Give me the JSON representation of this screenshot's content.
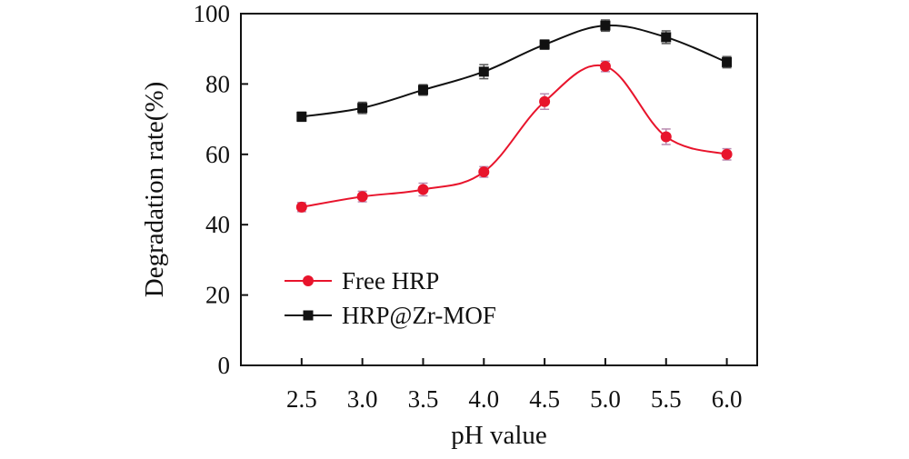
{
  "chart_data": {
    "type": "line",
    "title": "",
    "xlabel": "pH value",
    "ylabel": "Degradation rate(%)",
    "x": [
      2.5,
      3.0,
      3.5,
      4.0,
      4.5,
      5.0,
      5.5,
      6.0
    ],
    "x_tick_labels": [
      "2.5",
      "3.0",
      "3.5",
      "4.0",
      "4.5",
      "5.0",
      "5.5",
      "6.0"
    ],
    "xlim": [
      2.0,
      6.25
    ],
    "ylim": [
      0,
      100
    ],
    "y_ticks": [
      0,
      20,
      40,
      60,
      80,
      100
    ],
    "y_tick_labels": [
      "0",
      "20",
      "40",
      "60",
      "80",
      "100"
    ],
    "grid": false,
    "legend_position": "bottom-left",
    "series": [
      {
        "name": "Free HRP",
        "color": "#e8142c",
        "marker": "circle",
        "values": [
          45,
          48,
          50,
          55,
          75,
          85,
          65,
          60
        ],
        "errors": [
          1.3,
          1.5,
          1.8,
          1.5,
          2.2,
          1.5,
          2.2,
          1.6
        ]
      },
      {
        "name": "HRP@Zr-MOF",
        "color": "#111111",
        "marker": "square",
        "values": [
          70.7,
          73.2,
          78.3,
          83.5,
          91.2,
          96.6,
          93.3,
          86.2
        ],
        "errors": [
          1.3,
          1.6,
          1.5,
          2.0,
          1.3,
          1.6,
          1.8,
          1.6
        ]
      }
    ]
  }
}
